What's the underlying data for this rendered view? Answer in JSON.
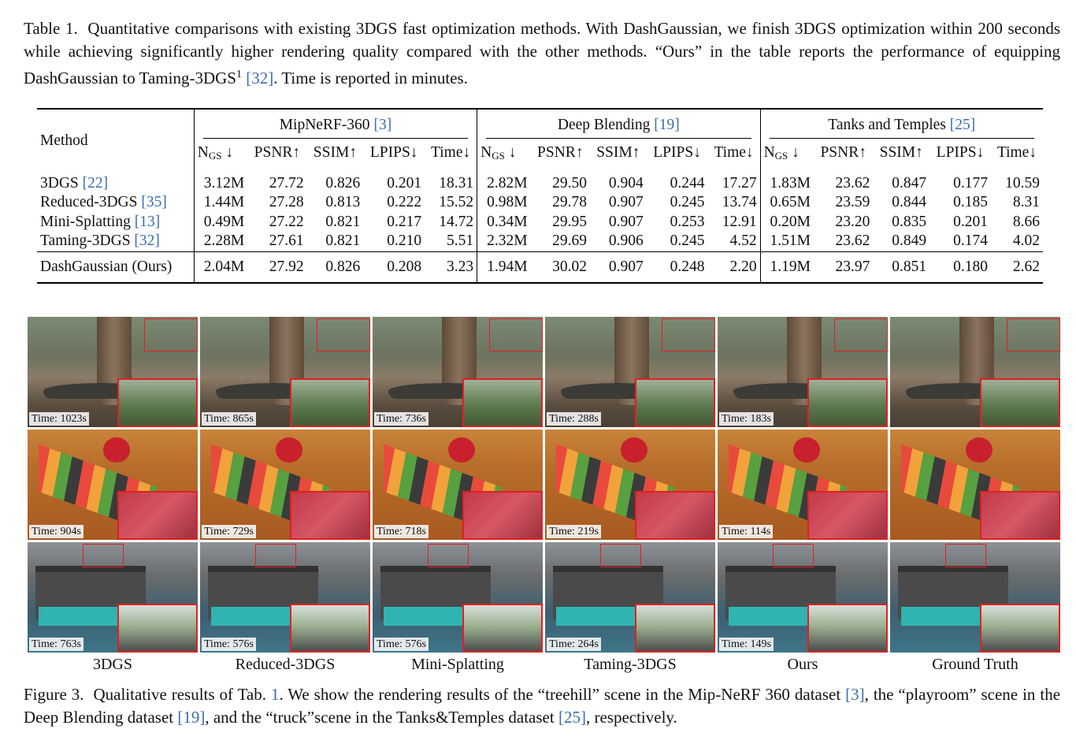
{
  "table_caption": {
    "label": "Table 1.",
    "parts": [
      {
        "t": "Quantitative comparisons with existing 3DGS fast optimization methods. With DashGaussian, we finish 3DGS optimization within 200 seconds while achieving significantly higher rendering quality compared with the other methods. “Ours” in the table reports the performance of equipping DashGaussian to Taming-3DGS"
      },
      {
        "t": "1",
        "sup": true
      },
      {
        "t": " "
      },
      {
        "t": "[32]",
        "cite": true
      },
      {
        "t": ". Time is reported in minutes."
      }
    ]
  },
  "table": {
    "method_header": "Method",
    "groups": [
      {
        "name": "MipNeRF-360",
        "cite": "3"
      },
      {
        "name": "Deep Blending",
        "cite": "19"
      },
      {
        "name": "Tanks and Temples",
        "cite": "25"
      }
    ],
    "columns": [
      {
        "main": "N",
        "sub": "GS",
        "arrow": " ↓"
      },
      {
        "main": "PSNR",
        "sub": "",
        "arrow": "↑"
      },
      {
        "main": "SSIM",
        "sub": "",
        "arrow": "↑"
      },
      {
        "main": "LPIPS",
        "sub": "",
        "arrow": "↓"
      },
      {
        "main": "Time",
        "sub": "",
        "arrow": "↓"
      }
    ],
    "rows": [
      {
        "method": "3DGS",
        "cite": "22",
        "cells": [
          "3.12M",
          "27.72",
          "0.826",
          "0.201",
          "18.31",
          "2.82M",
          "29.50",
          "0.904",
          "0.244",
          "17.27",
          "1.83M",
          "23.62",
          "0.847",
          "0.177",
          "10.59"
        ],
        "bold": [
          3,
          8
        ]
      },
      {
        "method": "Reduced-3DGS",
        "cite": "35",
        "cells": [
          "1.44M",
          "27.28",
          "0.813",
          "0.222",
          "15.52",
          "0.98M",
          "29.78",
          "0.907",
          "0.245",
          "13.74",
          "0.65M",
          "23.59",
          "0.844",
          "0.185",
          "8.31"
        ],
        "bold": []
      },
      {
        "method": "Mini-Splatting",
        "cite": "13",
        "cells": [
          "0.49M",
          "27.22",
          "0.821",
          "0.217",
          "14.72",
          "0.34M",
          "29.95",
          "0.907",
          "0.253",
          "12.91",
          "0.20M",
          "23.20",
          "0.835",
          "0.201",
          "8.66"
        ],
        "bold": [
          0,
          5,
          10
        ]
      },
      {
        "method": "Taming-3DGS",
        "cite": "32",
        "cells": [
          "2.28M",
          "27.61",
          "0.821",
          "0.210",
          "5.51",
          "2.32M",
          "29.69",
          "0.906",
          "0.245",
          "4.52",
          "1.51M",
          "23.62",
          "0.849",
          "0.174",
          "4.02"
        ],
        "bold": [
          13
        ]
      },
      {
        "method": "DashGaussian (Ours)",
        "cite": "",
        "cells": [
          "2.04M",
          "27.92",
          "0.826",
          "0.208",
          "3.23",
          "1.94M",
          "30.02",
          "0.907",
          "0.248",
          "2.20",
          "1.19M",
          "23.97",
          "0.851",
          "0.180",
          "2.62"
        ],
        "bold": [
          1,
          2,
          4,
          6,
          7,
          9,
          11,
          12,
          14
        ]
      }
    ]
  },
  "figure": {
    "scenes": [
      "treehill",
      "playroom",
      "truck"
    ],
    "columns": [
      "3DGS",
      "Reduced-3DGS",
      "Mini-Splatting",
      "Taming-3DGS",
      "Ours",
      "Ground Truth"
    ],
    "times": [
      [
        "Time: 1023s",
        "Time: 865s",
        "Time: 736s",
        "Time: 288s",
        "Time: 183s",
        ""
      ],
      [
        "Time: 904s",
        "Time: 729s",
        "Time: 718s",
        "Time: 219s",
        "Time: 114s",
        ""
      ],
      [
        "Time: 763s",
        "Time: 576s",
        "Time: 576s",
        "Time: 264s",
        "Time: 149s",
        ""
      ]
    ]
  },
  "figure_caption": {
    "label": "Figure 3.",
    "parts": [
      {
        "t": "Qualitative results of Tab. "
      },
      {
        "t": "1",
        "cite": true
      },
      {
        "t": ". We show the rendering results of the “treehill” scene in the Mip-NeRF 360 dataset "
      },
      {
        "t": "[3]",
        "cite": true
      },
      {
        "t": ", the “playroom” scene in the Deep Blending dataset "
      },
      {
        "t": "[19]",
        "cite": true
      },
      {
        "t": ", and the “truck”scene in the Tanks&Temples dataset "
      },
      {
        "t": "[25]",
        "cite": true
      },
      {
        "t": ", respectively."
      }
    ]
  }
}
